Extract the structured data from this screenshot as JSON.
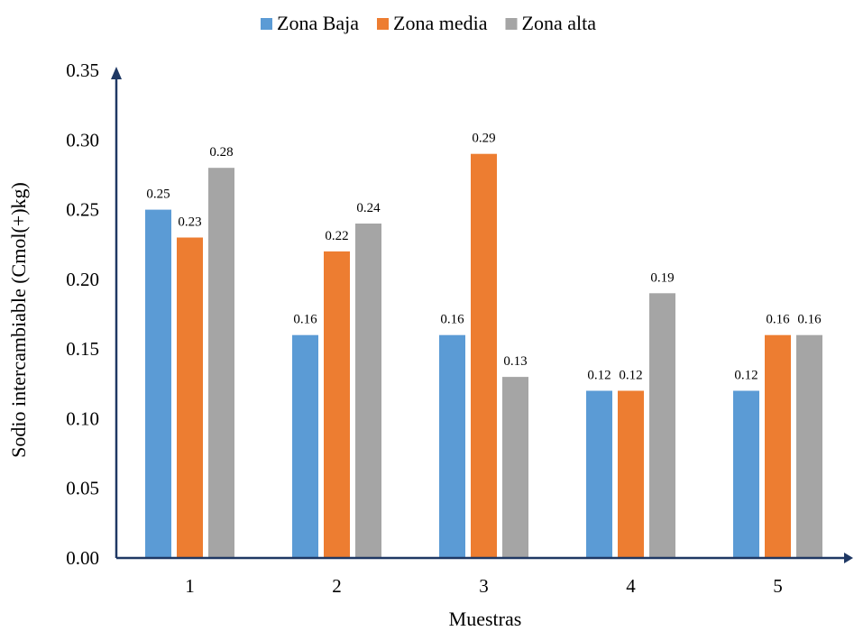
{
  "chart_data": {
    "type": "bar",
    "title": "",
    "xlabel": "Muestras",
    "ylabel": "Sodio intercambiable (Cmol(+)kg)",
    "categories": [
      "1",
      "2",
      "3",
      "4",
      "5"
    ],
    "ylim": [
      0,
      0.35
    ],
    "yticks": [
      "0.00",
      "0.05",
      "0.10",
      "0.15",
      "0.20",
      "0.25",
      "0.30",
      "0.35"
    ],
    "grid": false,
    "legend_position": "top",
    "series": [
      {
        "name": "Zona Baja",
        "color": "#5B9BD5",
        "values": [
          0.25,
          0.16,
          0.16,
          0.12,
          0.12
        ],
        "labels": [
          "0.25",
          "0.16",
          "0.16",
          "0.12",
          "0.12"
        ]
      },
      {
        "name": "Zona media",
        "color": "#ED7D31",
        "values": [
          0.23,
          0.22,
          0.29,
          0.12,
          0.16
        ],
        "labels": [
          "0.23",
          "0.22",
          "0.29",
          "0.12",
          "0.16"
        ]
      },
      {
        "name": "Zona alta",
        "color": "#A5A5A5",
        "values": [
          0.28,
          0.24,
          0.13,
          0.19,
          0.16
        ],
        "labels": [
          "0.28",
          "0.24",
          "0.13",
          "0.19",
          "0.16"
        ]
      }
    ]
  }
}
